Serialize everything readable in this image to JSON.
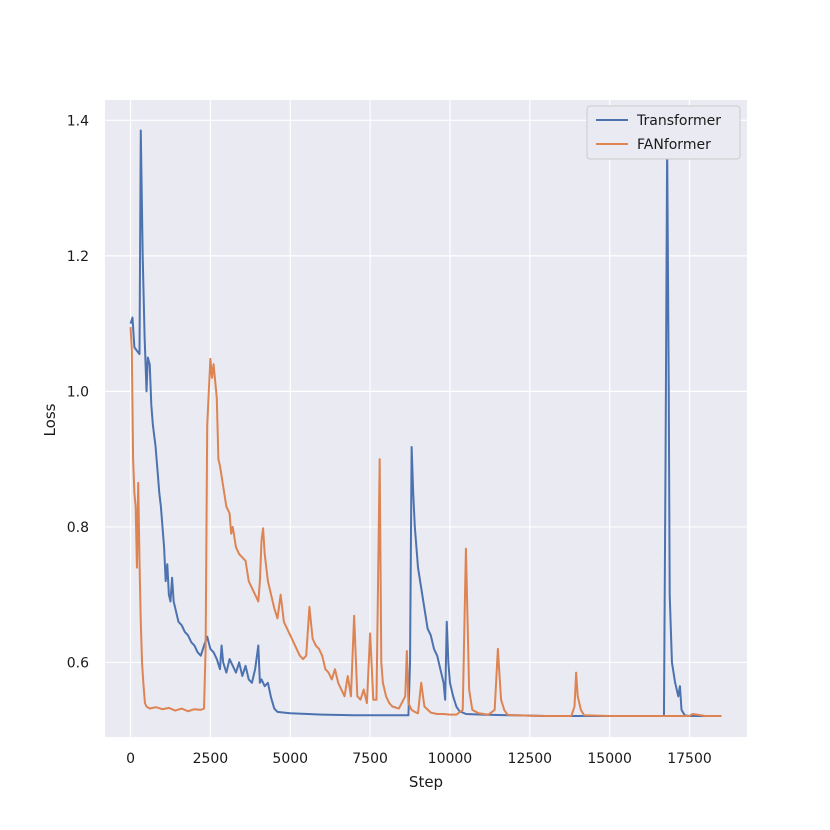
{
  "chart_data": {
    "type": "line",
    "title": "",
    "xlabel": "Step",
    "ylabel": "Loss",
    "xlim": [
      -800,
      19300
    ],
    "ylim": [
      0.49,
      1.43
    ],
    "xticks": [
      0,
      2500,
      5000,
      7500,
      10000,
      12500,
      15000,
      17500
    ],
    "yticks": [
      0.6,
      0.8,
      1.0,
      1.2,
      1.4
    ],
    "xtick_labels": [
      "0",
      "2500",
      "5000",
      "7500",
      "10000",
      "12500",
      "15000",
      "17500"
    ],
    "ytick_labels": [
      "0.6",
      "0.8",
      "1.0",
      "1.2",
      "1.4"
    ],
    "grid": true,
    "legend_position": "top-right",
    "series": [
      {
        "name": "Transformer",
        "color": "#4c72b0",
        "points": [
          [
            0,
            1.1
          ],
          [
            60,
            1.109
          ],
          [
            120,
            1.065
          ],
          [
            200,
            1.06
          ],
          [
            280,
            1.055
          ],
          [
            320,
            1.385
          ],
          [
            380,
            1.2
          ],
          [
            440,
            1.08
          ],
          [
            500,
            1.0
          ],
          [
            540,
            1.05
          ],
          [
            600,
            1.04
          ],
          [
            650,
            0.98
          ],
          [
            700,
            0.95
          ],
          [
            780,
            0.92
          ],
          [
            850,
            0.88
          ],
          [
            900,
            0.85
          ],
          [
            950,
            0.83
          ],
          [
            1000,
            0.8
          ],
          [
            1050,
            0.77
          ],
          [
            1100,
            0.72
          ],
          [
            1150,
            0.745
          ],
          [
            1200,
            0.7
          ],
          [
            1250,
            0.69
          ],
          [
            1300,
            0.725
          ],
          [
            1350,
            0.69
          ],
          [
            1400,
            0.68
          ],
          [
            1500,
            0.66
          ],
          [
            1600,
            0.655
          ],
          [
            1700,
            0.645
          ],
          [
            1800,
            0.64
          ],
          [
            1900,
            0.63
          ],
          [
            2000,
            0.625
          ],
          [
            2100,
            0.615
          ],
          [
            2200,
            0.61
          ],
          [
            2300,
            0.625
          ],
          [
            2400,
            0.638
          ],
          [
            2500,
            0.62
          ],
          [
            2600,
            0.615
          ],
          [
            2700,
            0.605
          ],
          [
            2800,
            0.59
          ],
          [
            2850,
            0.625
          ],
          [
            2900,
            0.6
          ],
          [
            3000,
            0.585
          ],
          [
            3100,
            0.605
          ],
          [
            3200,
            0.595
          ],
          [
            3300,
            0.585
          ],
          [
            3400,
            0.6
          ],
          [
            3500,
            0.58
          ],
          [
            3600,
            0.595
          ],
          [
            3700,
            0.575
          ],
          [
            3800,
            0.57
          ],
          [
            3900,
            0.59
          ],
          [
            4000,
            0.625
          ],
          [
            4050,
            0.57
          ],
          [
            4100,
            0.575
          ],
          [
            4200,
            0.565
          ],
          [
            4300,
            0.57
          ],
          [
            4400,
            0.548
          ],
          [
            4500,
            0.532
          ],
          [
            4600,
            0.527
          ],
          [
            4800,
            0.526
          ],
          [
            5000,
            0.525
          ],
          [
            6000,
            0.523
          ],
          [
            7000,
            0.522
          ],
          [
            8000,
            0.522
          ],
          [
            8700,
            0.522
          ],
          [
            8750,
            0.6
          ],
          [
            8800,
            0.918
          ],
          [
            8850,
            0.85
          ],
          [
            8900,
            0.8
          ],
          [
            8950,
            0.77
          ],
          [
            9000,
            0.74
          ],
          [
            9100,
            0.71
          ],
          [
            9200,
            0.68
          ],
          [
            9300,
            0.65
          ],
          [
            9400,
            0.64
          ],
          [
            9500,
            0.62
          ],
          [
            9600,
            0.61
          ],
          [
            9700,
            0.59
          ],
          [
            9800,
            0.57
          ],
          [
            9850,
            0.545
          ],
          [
            9900,
            0.66
          ],
          [
            9950,
            0.6
          ],
          [
            10000,
            0.57
          ],
          [
            10100,
            0.55
          ],
          [
            10200,
            0.535
          ],
          [
            10300,
            0.528
          ],
          [
            10500,
            0.524
          ],
          [
            11000,
            0.523
          ],
          [
            12000,
            0.522
          ],
          [
            13000,
            0.521
          ],
          [
            14000,
            0.521
          ],
          [
            15000,
            0.521
          ],
          [
            16000,
            0.521
          ],
          [
            16700,
            0.521
          ],
          [
            16750,
            0.9
          ],
          [
            16800,
            1.365
          ],
          [
            16850,
            1.0
          ],
          [
            16880,
            0.7
          ],
          [
            16950,
            0.6
          ],
          [
            17050,
            0.57
          ],
          [
            17150,
            0.55
          ],
          [
            17200,
            0.565
          ],
          [
            17250,
            0.53
          ],
          [
            17350,
            0.522
          ],
          [
            17500,
            0.521
          ],
          [
            18000,
            0.521
          ],
          [
            18500,
            0.521
          ]
        ]
      },
      {
        "name": "FANformer",
        "color": "#dd8452",
        "points": [
          [
            0,
            1.095
          ],
          [
            40,
            1.06
          ],
          [
            80,
            0.9
          ],
          [
            120,
            0.85
          ],
          [
            160,
            0.83
          ],
          [
            200,
            0.74
          ],
          [
            240,
            0.865
          ],
          [
            280,
            0.75
          ],
          [
            320,
            0.66
          ],
          [
            360,
            0.6
          ],
          [
            400,
            0.57
          ],
          [
            450,
            0.54
          ],
          [
            500,
            0.535
          ],
          [
            600,
            0.532
          ],
          [
            800,
            0.534
          ],
          [
            1000,
            0.531
          ],
          [
            1200,
            0.533
          ],
          [
            1400,
            0.529
          ],
          [
            1600,
            0.532
          ],
          [
            1800,
            0.528
          ],
          [
            2000,
            0.531
          ],
          [
            2200,
            0.53
          ],
          [
            2300,
            0.532
          ],
          [
            2350,
            0.62
          ],
          [
            2400,
            0.95
          ],
          [
            2450,
            1.0
          ],
          [
            2500,
            1.048
          ],
          [
            2550,
            1.02
          ],
          [
            2600,
            1.04
          ],
          [
            2700,
            0.99
          ],
          [
            2750,
            0.9
          ],
          [
            2800,
            0.89
          ],
          [
            2900,
            0.86
          ],
          [
            3000,
            0.83
          ],
          [
            3100,
            0.82
          ],
          [
            3150,
            0.79
          ],
          [
            3200,
            0.8
          ],
          [
            3300,
            0.77
          ],
          [
            3400,
            0.76
          ],
          [
            3500,
            0.755
          ],
          [
            3600,
            0.75
          ],
          [
            3700,
            0.72
          ],
          [
            3800,
            0.71
          ],
          [
            3900,
            0.7
          ],
          [
            4000,
            0.69
          ],
          [
            4050,
            0.72
          ],
          [
            4100,
            0.78
          ],
          [
            4150,
            0.798
          ],
          [
            4200,
            0.76
          ],
          [
            4300,
            0.72
          ],
          [
            4400,
            0.7
          ],
          [
            4500,
            0.68
          ],
          [
            4600,
            0.665
          ],
          [
            4700,
            0.7
          ],
          [
            4800,
            0.66
          ],
          [
            4900,
            0.65
          ],
          [
            5000,
            0.64
          ],
          [
            5100,
            0.63
          ],
          [
            5200,
            0.62
          ],
          [
            5300,
            0.61
          ],
          [
            5400,
            0.605
          ],
          [
            5500,
            0.61
          ],
          [
            5600,
            0.682
          ],
          [
            5700,
            0.635
          ],
          [
            5800,
            0.625
          ],
          [
            5900,
            0.62
          ],
          [
            6000,
            0.61
          ],
          [
            6100,
            0.59
          ],
          [
            6200,
            0.585
          ],
          [
            6300,
            0.575
          ],
          [
            6400,
            0.59
          ],
          [
            6500,
            0.57
          ],
          [
            6600,
            0.56
          ],
          [
            6700,
            0.55
          ],
          [
            6800,
            0.58
          ],
          [
            6900,
            0.55
          ],
          [
            7000,
            0.669
          ],
          [
            7100,
            0.55
          ],
          [
            7200,
            0.545
          ],
          [
            7300,
            0.56
          ],
          [
            7400,
            0.54
          ],
          [
            7500,
            0.643
          ],
          [
            7600,
            0.545
          ],
          [
            7700,
            0.545
          ],
          [
            7800,
            0.9
          ],
          [
            7850,
            0.6
          ],
          [
            7900,
            0.57
          ],
          [
            8000,
            0.55
          ],
          [
            8100,
            0.54
          ],
          [
            8200,
            0.535
          ],
          [
            8400,
            0.532
          ],
          [
            8600,
            0.55
          ],
          [
            8650,
            0.617
          ],
          [
            8700,
            0.54
          ],
          [
            8800,
            0.53
          ],
          [
            8900,
            0.527
          ],
          [
            9000,
            0.525
          ],
          [
            9100,
            0.57
          ],
          [
            9200,
            0.535
          ],
          [
            9400,
            0.526
          ],
          [
            9600,
            0.524
          ],
          [
            9800,
            0.524
          ],
          [
            10000,
            0.523
          ],
          [
            10200,
            0.523
          ],
          [
            10400,
            0.53
          ],
          [
            10500,
            0.768
          ],
          [
            10600,
            0.56
          ],
          [
            10700,
            0.53
          ],
          [
            10900,
            0.525
          ],
          [
            11200,
            0.523
          ],
          [
            11400,
            0.53
          ],
          [
            11500,
            0.62
          ],
          [
            11600,
            0.545
          ],
          [
            11700,
            0.53
          ],
          [
            11800,
            0.523
          ],
          [
            12000,
            0.522
          ],
          [
            13000,
            0.521
          ],
          [
            13800,
            0.521
          ],
          [
            13900,
            0.535
          ],
          [
            13950,
            0.585
          ],
          [
            14000,
            0.55
          ],
          [
            14100,
            0.53
          ],
          [
            14200,
            0.522
          ],
          [
            15000,
            0.521
          ],
          [
            16000,
            0.521
          ],
          [
            17000,
            0.521
          ],
          [
            17500,
            0.521
          ],
          [
            17600,
            0.524
          ],
          [
            18000,
            0.521
          ],
          [
            18500,
            0.521
          ]
        ]
      }
    ]
  }
}
